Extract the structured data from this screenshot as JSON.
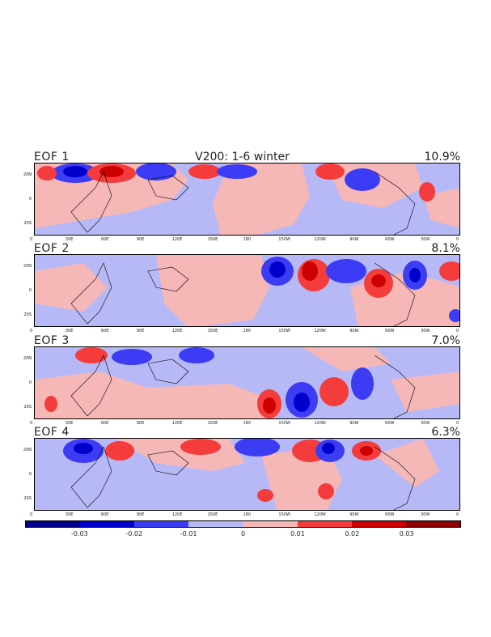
{
  "title": "V200: 1-6 winter",
  "panels": [
    {
      "label": "EOF 1",
      "variance": "10.9%"
    },
    {
      "label": "EOF 2",
      "variance": "8.1%"
    },
    {
      "label": "EOF 3",
      "variance": "7.0%"
    },
    {
      "label": "EOF 4",
      "variance": "6.3%"
    }
  ],
  "lon_ticks": [
    "0",
    "30E",
    "60E",
    "90E",
    "120E",
    "150E",
    "180",
    "150W",
    "120W",
    "90W",
    "60W",
    "30W",
    "0"
  ],
  "lat_ticks": [
    "20N",
    "0",
    "20S"
  ],
  "colorbar": {
    "colors": [
      "#7a0000",
      "#00008b",
      "#0000cd",
      "#3c3cf5",
      "#b7b9f6",
      "#f6b7b7",
      "#f53c3c",
      "#cd0000",
      "#8b0000"
    ],
    "labels": [
      "-0.03",
      "-0.02",
      "-0.01",
      "0",
      "0.01",
      "0.02",
      "0.03"
    ]
  },
  "fill_colors": {
    "neg_weak": "#b7b9f6",
    "neg_mid": "#3c3cf5",
    "neg_strong": "#0000cd",
    "neg_extreme": "#00008b",
    "pos_weak": "#f6b7b7",
    "pos_mid": "#f53c3c",
    "pos_strong": "#cd0000",
    "pos_extreme": "#8b0000"
  }
}
